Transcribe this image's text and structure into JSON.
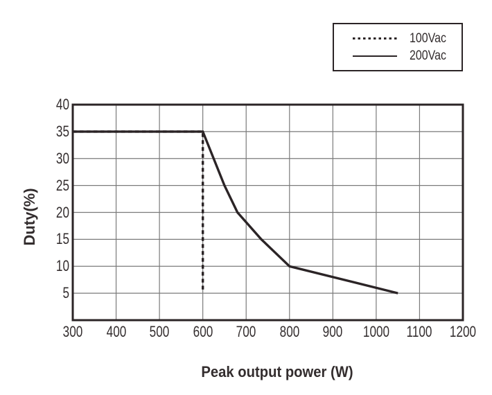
{
  "chart_data": {
    "type": "line",
    "title": "",
    "xlabel": "Peak output power (W)",
    "ylabel": "Duty(%)",
    "xlim": [
      300,
      1200
    ],
    "ylim": [
      0,
      40
    ],
    "x_ticks": [
      300,
      400,
      500,
      600,
      700,
      800,
      900,
      1000,
      1100,
      1200
    ],
    "y_ticks": [
      5,
      10,
      15,
      20,
      25,
      30,
      35,
      40
    ],
    "grid": true,
    "legend_position": "top-right-outside",
    "series": [
      {
        "name": "100Vac",
        "line_style": "dashed",
        "points": [
          [
            300,
            35
          ],
          [
            600,
            35
          ],
          [
            600,
            5.5
          ]
        ]
      },
      {
        "name": "200Vac",
        "line_style": "solid",
        "points": [
          [
            300,
            35
          ],
          [
            600,
            35
          ],
          [
            625,
            30
          ],
          [
            650,
            25
          ],
          [
            680,
            20
          ],
          [
            735,
            15
          ],
          [
            800,
            10
          ],
          [
            1050,
            5
          ]
        ]
      }
    ]
  },
  "legend": {
    "items": [
      {
        "label": "100Vac",
        "line_style": "dashed"
      },
      {
        "label": "200Vac",
        "line_style": "solid"
      }
    ]
  },
  "colors": {
    "ink": "#2b2426",
    "grid": "#7a7a7a",
    "text": "#332d2e",
    "background": "#ffffff"
  }
}
